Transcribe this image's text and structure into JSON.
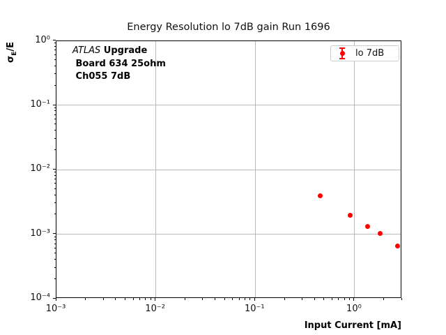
{
  "chart_data": {
    "type": "scatter",
    "title": "Energy Resolution lo 7dB gain Run 1696",
    "xlabel": "Input Current [mA]",
    "ylabel": "σ_E/E",
    "ylabel_parts": {
      "sigma": "σ",
      "sub": "E",
      "rest": "/E"
    },
    "xscale": "log",
    "yscale": "log",
    "xlim": [
      0.001,
      3.0
    ],
    "ylim": [
      0.0001,
      1.0
    ],
    "grid": true,
    "grid_color": "#b9b9b9",
    "x_ticks": [
      {
        "exp": -3,
        "label": "10⁻³"
      },
      {
        "exp": -2,
        "label": "10⁻²"
      },
      {
        "exp": -1,
        "label": "10⁻¹"
      },
      {
        "exp": 0,
        "label": "10⁰"
      }
    ],
    "y_ticks": [
      {
        "exp": 0,
        "label": "10⁰"
      },
      {
        "exp": -1,
        "label": "10⁻¹"
      },
      {
        "exp": -2,
        "label": "10⁻²"
      },
      {
        "exp": -3,
        "label": "10⁻³"
      },
      {
        "exp": -4,
        "label": "10⁻⁴"
      }
    ],
    "legend": {
      "label": "lo 7dB",
      "position": "upper right",
      "marker": "circle-with-errorbar",
      "marker_color": "#ff0000"
    },
    "annotation": {
      "line1_italic": "ATLAS",
      "line1_bold": " Upgrade",
      "line2": " Board 634 25ohm",
      "line3": " Ch055 7dB"
    },
    "series": [
      {
        "name": "lo 7dB",
        "color": "#ff0000",
        "marker": "circle",
        "x": [
          0.45,
          0.9,
          1.35,
          1.8,
          2.7
        ],
        "y": [
          0.004,
          0.00195,
          0.00132,
          0.00103,
          0.00066
        ]
      }
    ]
  }
}
